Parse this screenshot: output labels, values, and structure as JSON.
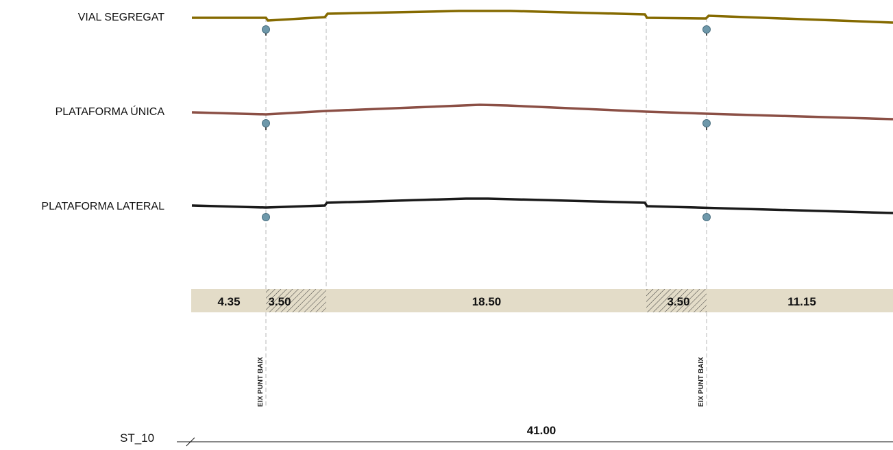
{
  "profiles": [
    {
      "label": "VIAL SEGREGAT",
      "color": "#856a00"
    },
    {
      "label": "PLATAFORMA ÚNICA",
      "color": "#8b4f45"
    },
    {
      "label": "PLATAFORMA LATERAL",
      "color": "#1a1a1a"
    }
  ],
  "widths": [
    "4.35",
    "3.50",
    "18.50",
    "3.50",
    "11.15"
  ],
  "axis_labels": [
    "EIX PUNT BAIX",
    "EIX PUNT BAIX"
  ],
  "station": "ST_10",
  "total_width": "41.00",
  "colors": {
    "band_fill": "#e3dcc8",
    "marker_fill": "#6e98aa",
    "guide_line": "#cfcfcf"
  }
}
